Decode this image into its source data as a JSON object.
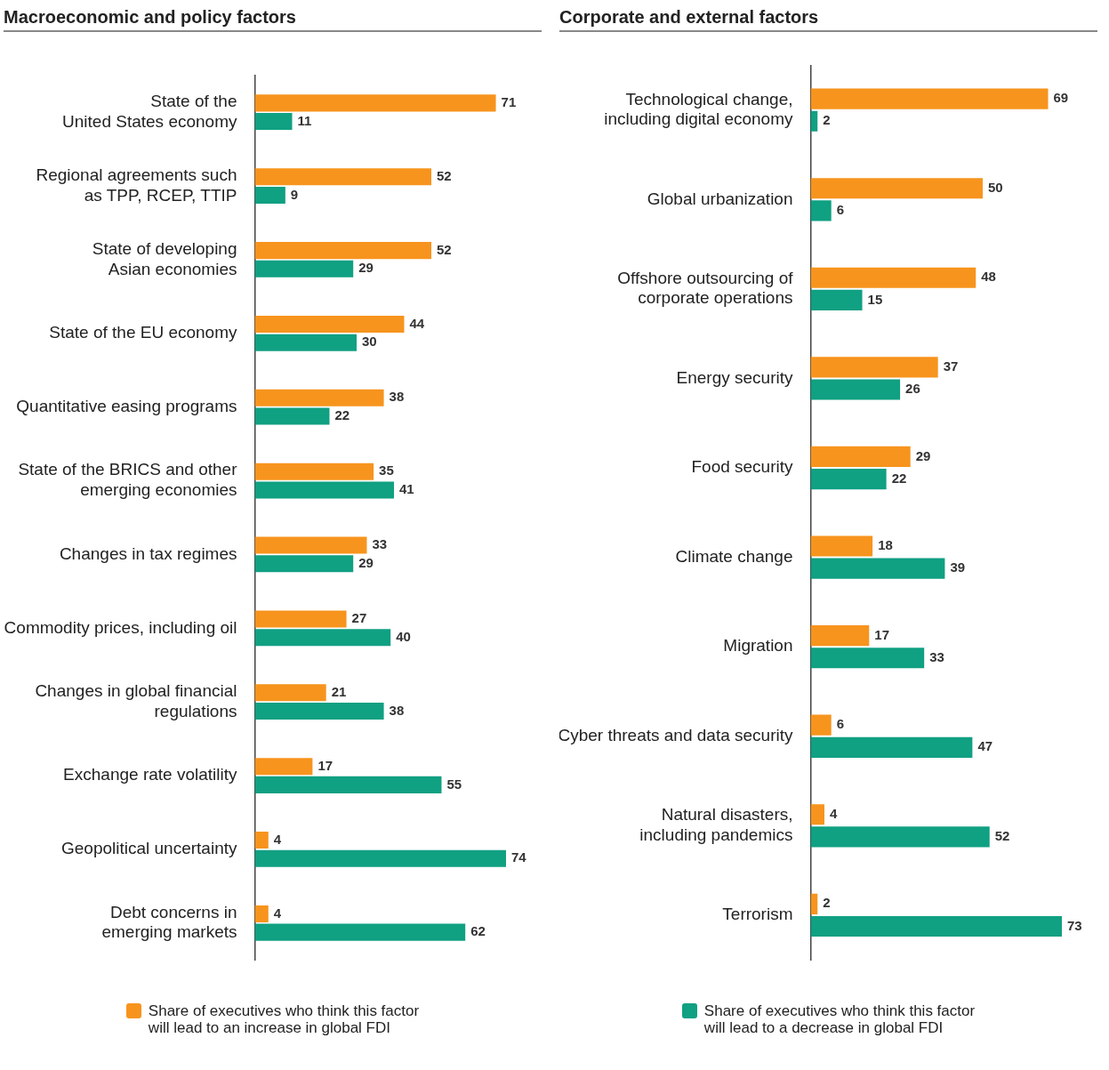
{
  "chart_data": [
    {
      "type": "bar",
      "title": "Macroeconomic and policy factors",
      "orientation": "horizontal",
      "categories": [
        "State of the\nUnited States economy",
        "Regional agreements such\nas TPP, RCEP, TTIP",
        "State of developing\nAsian economies",
        "State of the EU economy",
        "Quantitative easing programs",
        "State of the BRICS and other\nemerging economies",
        "Changes in tax regimes",
        "Commodity prices, including oil",
        "Changes in global financial\nregulations",
        "Exchange rate volatility",
        "Geopolitical uncertainty",
        "Debt concerns in\nemerging markets"
      ],
      "series": [
        {
          "name": "Share of executives who think this factor\nwill lead to an increase in global FDI",
          "color": "#f7941d",
          "values": [
            71,
            52,
            52,
            44,
            38,
            35,
            33,
            27,
            21,
            17,
            4,
            4
          ]
        },
        {
          "color": "#10a082",
          "values": [
            11,
            9,
            29,
            30,
            22,
            41,
            29,
            40,
            38,
            55,
            74,
            62
          ]
        }
      ],
      "data_labels": true,
      "tick_labels": "y",
      "legend": "bottom"
    },
    {
      "type": "bar",
      "title": "Corporate and external factors",
      "orientation": "horizontal",
      "categories": [
        "Technological change,\nincluding digital economy",
        "Global urbanization",
        "Offshore outsourcing of\ncorporate operations",
        "Energy security",
        "Food security",
        "Climate change",
        "Migration",
        "Cyber threats and data security",
        "Natural disasters,\nincluding pandemics",
        "Terrorism"
      ],
      "series": [
        {
          "color": "#f7941d",
          "values": [
            69,
            50,
            48,
            37,
            29,
            18,
            17,
            6,
            4,
            2
          ]
        },
        {
          "name": "Share of executives who think this factor\nwill lead to a decrease in global FDI",
          "color": "#10a082",
          "values": [
            2,
            6,
            15,
            26,
            22,
            39,
            33,
            47,
            52,
            73
          ]
        }
      ],
      "data_labels": true,
      "tick_labels": "y",
      "legend": "bottom"
    }
  ]
}
